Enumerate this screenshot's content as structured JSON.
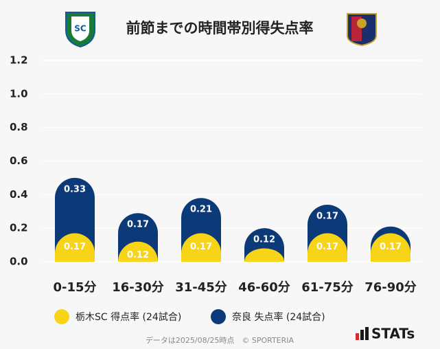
{
  "chart_data": {
    "type": "stacked-bar",
    "title": "前節までの時間帯別得失点率",
    "categories": [
      "0-15分",
      "16-30分",
      "31-45分",
      "46-60分",
      "61-75分",
      "76-90分"
    ],
    "series": [
      {
        "name": "栃木SC 得点率 (24試合)",
        "color": "#f7d417",
        "values": [
          0.17,
          0.12,
          0.17,
          0.08,
          0.17,
          0.17
        ],
        "value_labels": [
          "0.17",
          "0.12",
          "0.17",
          null,
          "0.17",
          "0.17"
        ]
      },
      {
        "name": "奈良 失点率 (24試合)",
        "color": "#0c3a78",
        "values": [
          0.33,
          0.17,
          0.21,
          0.12,
          0.17,
          0.04
        ],
        "value_labels": [
          "0.33",
          "0.17",
          "0.21",
          "0.12",
          "0.17",
          null
        ]
      }
    ],
    "ylim": [
      0,
      1.2
    ],
    "yticks": [
      {
        "value": 0,
        "label": "0.0"
      },
      0.2,
      0.4,
      0.6,
      0.8,
      {
        "value": 1,
        "label": "1.0"
      },
      1.2
    ],
    "grid": true,
    "footer": "データは2025/08/25時点　© SPORTERIA",
    "brand": "STATs"
  }
}
